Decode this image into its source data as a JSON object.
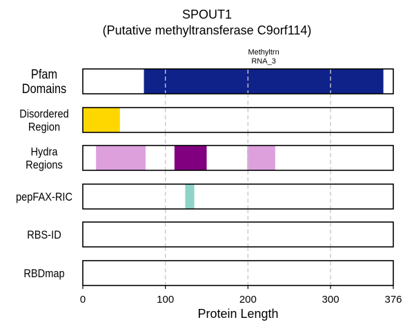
{
  "chart_data": {
    "type": "bar",
    "title": "SPOUT1",
    "subtitle": "(Putative methyltransferase C9orf114)",
    "xlabel": "Protein Length",
    "xlim": [
      0,
      376
    ],
    "xticks": [
      0,
      100,
      200,
      300,
      376
    ],
    "grid": "vertical dashed at 100, 200, 300",
    "tracks": [
      {
        "name_lines": [
          "Pfam",
          "Domains"
        ],
        "segments": [
          {
            "start": 74,
            "end": 364,
            "color": "#0f228a",
            "label_lines": [
              "Methyltrn",
              "RNA_3"
            ]
          }
        ]
      },
      {
        "name_lines": [
          "Disordered",
          "Region"
        ],
        "segments": [
          {
            "start": 0,
            "end": 45,
            "color": "#ffd700"
          }
        ]
      },
      {
        "name_lines": [
          "Hydra",
          "Regions"
        ],
        "segments": [
          {
            "start": 16,
            "end": 76,
            "color": "#dda0dd"
          },
          {
            "start": 111,
            "end": 150,
            "color": "#800080"
          },
          {
            "start": 199,
            "end": 233,
            "color": "#dda0dd"
          }
        ]
      },
      {
        "name_lines": [
          "pepFAX-RIC"
        ],
        "segments": [
          {
            "start": 124,
            "end": 135,
            "color": "#8fd3c6"
          }
        ]
      },
      {
        "name_lines": [
          "RBS-ID"
        ],
        "segments": []
      },
      {
        "name_lines": [
          "RBDmap"
        ],
        "segments": []
      }
    ]
  }
}
